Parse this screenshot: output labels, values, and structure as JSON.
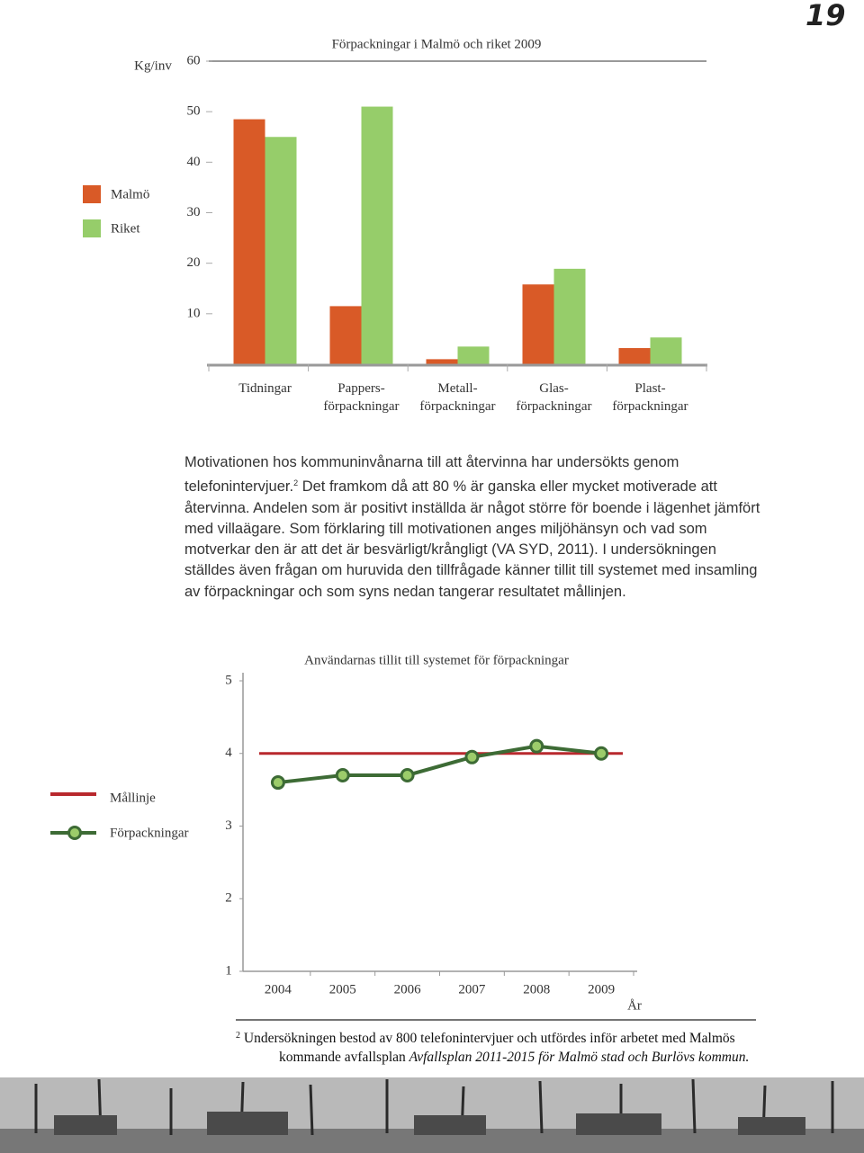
{
  "page_number": "19",
  "chart_data": [
    {
      "type": "bar",
      "title": "Förpackningar i Malmö och riket 2009",
      "y_label": "Kg/inv",
      "categories": [
        "Tidningar",
        "Pappers-\nförpackningar",
        "Metall-\nförpackningar",
        "Glas-\nförpackningar",
        "Plast-\nförpackningar"
      ],
      "series": [
        {
          "name": "Malmö",
          "color": "#d95a27",
          "values": [
            48.5,
            11.5,
            1,
            15.8,
            3.2
          ]
        },
        {
          "name": "Riket",
          "color": "#96cd6a",
          "values": [
            45,
            51,
            3.5,
            18.9,
            5.3
          ]
        }
      ],
      "ylim": [
        0,
        60
      ],
      "yticks": [
        10,
        20,
        30,
        40,
        50,
        60
      ],
      "grid": false
    },
    {
      "type": "line",
      "title": "Användarnas tillit till systemet för förpackningar",
      "x_label": "År",
      "categories": [
        "2004",
        "2005",
        "2006",
        "2007",
        "2008",
        "2009"
      ],
      "series": [
        {
          "name": "Förpackningar",
          "color": "#3d6b35",
          "marker_color": "#9ccc6a",
          "values": [
            3.6,
            3.7,
            3.7,
            3.95,
            4.1,
            4.0
          ]
        }
      ],
      "target": {
        "name": "Mållinje",
        "value": 4,
        "color": "#b8282d"
      },
      "ylim": [
        1,
        5
      ],
      "yticks": [
        1,
        2,
        3,
        4,
        5
      ],
      "grid": false
    }
  ],
  "paragraph": {
    "part1": "Motivationen hos kommuninvånarna till att återvinna har undersökts genom telefonintervjuer.",
    "footnote_ref": "2",
    "part2": "Det framkom då att 80 % är ganska eller mycket motiverade att återvinna. Andelen som är positivt inställda är något större för boende i lägenhet jämfört med villaägare. Som förklaring till motivationen anges miljöhänsyn och vad som motverkar den är att det är besvärligt/krångligt (VA SYD, 2011). I undersökningen ställdes även frågan om huruvida den tillfrågade känner tillit till systemet med insamling av förpackningar och som syns nedan tangerar resultatet mållinjen."
  },
  "footnote": {
    "marker": "2",
    "text": "Undersökningen bestod av 800 telefonintervjuer och utfördes inför arbetet med Malmös kommande avfallsplan",
    "italic": "Avfallsplan 2011-2015 för Malmö stad och Burlövs kommun."
  }
}
